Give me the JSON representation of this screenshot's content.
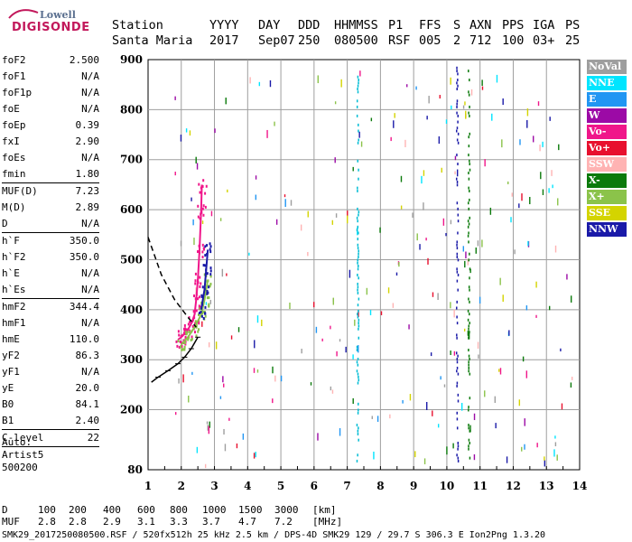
{
  "logo": {
    "line1": "Lowell",
    "line2": "DIGISONDE"
  },
  "header": {
    "labels": [
      "Station",
      "YYYY",
      "DAY",
      "DDD",
      "HHMMSS",
      "P1",
      "FFS",
      "S",
      "AXN",
      "PPS",
      "IGA",
      "PS"
    ],
    "values": [
      "Santa Maria",
      "2017",
      "Sep07",
      "250",
      "080500",
      "RSF",
      "005",
      "2",
      "712",
      "100",
      "03+",
      "25"
    ]
  },
  "params": [
    {
      "name": "foF2",
      "value": "2.500"
    },
    {
      "name": "foF1",
      "value": "N/A"
    },
    {
      "name": "foF1p",
      "value": "N/A"
    },
    {
      "name": "foE",
      "value": "N/A"
    },
    {
      "name": "foEp",
      "value": "0.39"
    },
    {
      "name": "fxI",
      "value": "2.90"
    },
    {
      "name": "foEs",
      "value": "N/A"
    },
    {
      "name": "fmin",
      "value": "1.80",
      "sep": true
    },
    {
      "name": "MUF(D)",
      "value": "7.23"
    },
    {
      "name": "M(D)",
      "value": "2.89"
    },
    {
      "name": "D",
      "value": "N/A",
      "sep": true
    },
    {
      "name": "h`F",
      "value": "350.0"
    },
    {
      "name": "h`F2",
      "value": "350.0"
    },
    {
      "name": "h`E",
      "value": "N/A"
    },
    {
      "name": "h`Es",
      "value": "N/A",
      "sep": true
    },
    {
      "name": "hmF2",
      "value": "344.4"
    },
    {
      "name": "hmF1",
      "value": "N/A"
    },
    {
      "name": "hmE",
      "value": "110.0"
    },
    {
      "name": "yF2",
      "value": "86.3"
    },
    {
      "name": "yF1",
      "value": "N/A"
    },
    {
      "name": "yE",
      "value": "20.0"
    },
    {
      "name": "B0",
      "value": "84.1"
    },
    {
      "name": "B1",
      "value": "2.40",
      "sep": true
    },
    {
      "name": "C-level",
      "value": "22",
      "sep": true
    }
  ],
  "auto": {
    "line1": "Auto:",
    "line2": "Artist5",
    "line3": "500200"
  },
  "legend": [
    {
      "label": "NoVal",
      "color": "#9e9e9e"
    },
    {
      "label": "NNE",
      "color": "#00e5ff"
    },
    {
      "label": "E",
      "color": "#2196f3"
    },
    {
      "label": "W",
      "color": "#9c0aa6"
    },
    {
      "label": "Vo-",
      "color": "#f0168a"
    },
    {
      "label": "Vo+",
      "color": "#e8102e"
    },
    {
      "label": "SSW",
      "color": "#ffb3b3"
    },
    {
      "label": "X-",
      "color": "#0b7a0b"
    },
    {
      "label": "X+",
      "color": "#8bc34a"
    },
    {
      "label": "SSE",
      "color": "#d4d400"
    },
    {
      "label": "NNW",
      "color": "#1a1aa8"
    }
  ],
  "bottom": {
    "row1_label": "D",
    "row1": [
      "100",
      "200",
      "400",
      "600",
      "800",
      "1000",
      "1500",
      "3000",
      "[km]"
    ],
    "row2_label": "MUF",
    "row2": [
      "2.8",
      "2.8",
      "2.9",
      "3.1",
      "3.3",
      "3.7",
      "4.7",
      "7.2",
      "[MHz]"
    ]
  },
  "footer": "SMK29_2017250080500.RSF / 520fx512h 25 kHz 2.5 km / DPS-4D SMK29 129 / 29.7 S 306.3 E Ion2Png 1.3.20",
  "chart_data": {
    "type": "scatter",
    "xlabel": "",
    "ylabel": "",
    "xlim": [
      1,
      14
    ],
    "ylim": [
      80,
      900
    ],
    "xticks": [
      1,
      2,
      3,
      4,
      5,
      6,
      7,
      8,
      9,
      10,
      11,
      12,
      13,
      14
    ],
    "yticks": [
      80,
      200,
      300,
      400,
      500,
      600,
      700,
      800,
      900
    ],
    "trace_series": [
      {
        "name": "Vo-",
        "color": "#f0168a",
        "points": [
          [
            1.9,
            340
          ],
          [
            2.0,
            345
          ],
          [
            2.1,
            352
          ],
          [
            2.2,
            360
          ],
          [
            2.3,
            372
          ],
          [
            2.4,
            390
          ],
          [
            2.45,
            420
          ],
          [
            2.5,
            460
          ],
          [
            2.55,
            520
          ],
          [
            2.6,
            600
          ],
          [
            2.62,
            650
          ]
        ]
      },
      {
        "name": "X+",
        "color": "#8bc34a",
        "points": [
          [
            2.0,
            330
          ],
          [
            2.2,
            345
          ],
          [
            2.4,
            365
          ],
          [
            2.6,
            390
          ],
          [
            2.7,
            420
          ],
          [
            2.8,
            460
          ]
        ]
      },
      {
        "name": "NNW",
        "color": "#1a1aa8",
        "points": [
          [
            2.6,
            400
          ],
          [
            2.7,
            440
          ],
          [
            2.75,
            480
          ],
          [
            2.8,
            520
          ]
        ]
      }
    ],
    "profile": [
      [
        1.1,
        255
      ],
      [
        1.3,
        265
      ],
      [
        1.6,
        278
      ],
      [
        1.9,
        292
      ],
      [
        2.1,
        305
      ],
      [
        2.3,
        322
      ],
      [
        2.5,
        345
      ]
    ],
    "profile_dashed": [
      [
        1.0,
        545
      ],
      [
        1.4,
        470
      ],
      [
        1.8,
        420
      ],
      [
        2.2,
        385
      ],
      [
        2.45,
        365
      ]
    ],
    "vertical_traces_mhz": [
      7.3,
      10.3,
      10.65
    ],
    "foF2_marker_mhz": 2.5
  }
}
